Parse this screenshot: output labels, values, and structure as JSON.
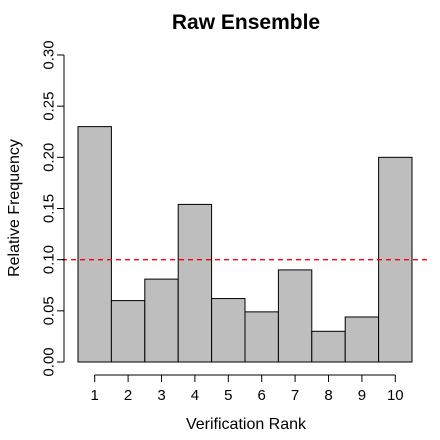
{
  "chart_data": {
    "type": "bar",
    "title": "Raw Ensemble",
    "xlabel": "Verification Rank",
    "ylabel": "Relative Frequency",
    "categories": [
      "1",
      "2",
      "3",
      "4",
      "5",
      "6",
      "7",
      "8",
      "9",
      "10"
    ],
    "values": [
      0.23,
      0.06,
      0.081,
      0.154,
      0.062,
      0.049,
      0.09,
      0.03,
      0.044,
      0.2
    ],
    "ylim": [
      0,
      0.3
    ],
    "yticks": [
      "0.00",
      "0.05",
      "0.10",
      "0.15",
      "0.20",
      "0.25",
      "0.30"
    ],
    "reference_line": {
      "y": 0.1,
      "color": "#ff0000",
      "style": "dashed"
    },
    "bar_color": "#bebebe",
    "grid": false
  }
}
